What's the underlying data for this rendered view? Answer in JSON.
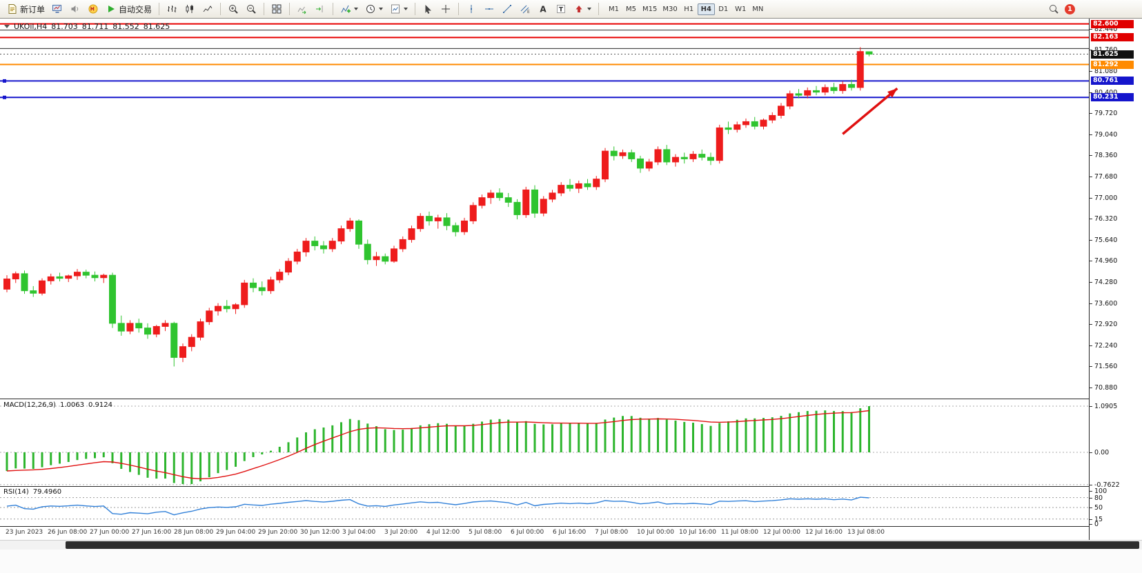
{
  "toolbar": {
    "labels": {
      "new_order": "新订单",
      "auto_trading": "自动交易"
    },
    "timeframes": [
      "M1",
      "M5",
      "M15",
      "M30",
      "H1",
      "H4",
      "D1",
      "W1",
      "MN"
    ],
    "active_timeframe": "H4",
    "notification_count": "1",
    "items": [
      {
        "type": "button",
        "name": "new-order-button",
        "icon": "doc",
        "label_key": "new_order"
      },
      {
        "type": "button",
        "name": "chart-window-button",
        "icon": "monitor"
      },
      {
        "type": "button",
        "name": "alerts-button",
        "icon": "speaker"
      },
      {
        "type": "button",
        "name": "community-button",
        "icon": "mq"
      },
      {
        "type": "button",
        "name": "auto-trading-button",
        "icon": "play",
        "label_key": "auto_trading"
      },
      {
        "type": "sep"
      },
      {
        "type": "button",
        "name": "bar-chart-mode-button",
        "icon": "bars"
      },
      {
        "type": "button",
        "name": "candlestick-mode-button",
        "icon": "candles"
      },
      {
        "type": "button",
        "name": "line-chart-mode-button",
        "icon": "linechart"
      },
      {
        "type": "sep"
      },
      {
        "type": "button",
        "name": "zoom-in-button",
        "icon": "zoomin"
      },
      {
        "type": "button",
        "name": "zoom-out-button",
        "icon": "zoomout"
      },
      {
        "type": "sep"
      },
      {
        "type": "button",
        "name": "tile-windows-button",
        "icon": "grid"
      },
      {
        "type": "sep"
      },
      {
        "type": "button",
        "name": "auto-scroll-button",
        "icon": "autoscroll"
      },
      {
        "type": "button",
        "name": "chart-shift-button",
        "icon": "shift"
      },
      {
        "type": "sep"
      },
      {
        "type": "button",
        "name": "indicators-button",
        "icon": "indicator",
        "caret": true
      },
      {
        "type": "button",
        "name": "periods-button",
        "icon": "clock",
        "caret": true
      },
      {
        "type": "button",
        "name": "templates-button",
        "icon": "template",
        "caret": true
      },
      {
        "type": "sep"
      },
      {
        "type": "button",
        "name": "cursor-button",
        "icon": "cursor"
      },
      {
        "type": "button",
        "name": "crosshair-button",
        "icon": "crosshair"
      },
      {
        "type": "sep"
      },
      {
        "type": "button",
        "name": "vertical-line-button",
        "icon": "vline"
      },
      {
        "type": "button",
        "name": "horizontal-line-button",
        "icon": "hline"
      },
      {
        "type": "button",
        "name": "trendline-button",
        "icon": "trend"
      },
      {
        "type": "button",
        "name": "equidistant-channel-button",
        "icon": "channel"
      },
      {
        "type": "button",
        "name": "text-label-button",
        "icon": "letterA"
      },
      {
        "type": "button",
        "name": "shapes-button",
        "icon": "letterT"
      },
      {
        "type": "button",
        "name": "arrows-button",
        "icon": "shapes",
        "caret": true
      },
      {
        "type": "sep"
      },
      {
        "type": "tf"
      }
    ]
  },
  "chart": {
    "symbol_tf": "UKOil,H4",
    "open": "81.703",
    "high": "81.711",
    "low": "81.552",
    "close": "81.625"
  },
  "macd": {
    "name": "MACD(12,26,9)",
    "main_value": "1.0063",
    "signal_value": "0.9124",
    "axis": [
      "1.0905",
      "0.00",
      "-0.7622"
    ]
  },
  "rsi": {
    "name": "RSI(14)",
    "value": "79.4960",
    "axis_labels": [
      "100",
      "80",
      "50",
      "15",
      "0"
    ],
    "levels": [
      80,
      50,
      15
    ]
  },
  "price_axis": {
    "ticks": [
      "82.440",
      "81.760",
      "81.080",
      "80.400",
      "79.720",
      "79.040",
      "78.360",
      "77.680",
      "77.000",
      "76.320",
      "75.640",
      "74.960",
      "74.280",
      "73.600",
      "72.920",
      "72.240",
      "71.560",
      "70.880"
    ],
    "boxes": [
      {
        "value": "82.600",
        "color": "#e00000"
      },
      {
        "value": "82.163",
        "color": "#e00000"
      },
      {
        "value": "81.625",
        "color": "#111111"
      },
      {
        "value": "81.292",
        "color": "#ff8a00"
      },
      {
        "value": "80.761",
        "color": "#1515cc"
      },
      {
        "value": "80.231",
        "color": "#1515cc"
      }
    ]
  },
  "time_axis": {
    "labels": [
      "23 Jun 2023",
      "26 Jun 08:00",
      "27 Jun 00:00",
      "27 Jun 16:00",
      "28 Jun 08:00",
      "29 Jun 04:00",
      "29 Jun 20:00",
      "30 Jun 12:00",
      "3 Jul 04:00",
      "3 Jul 20:00",
      "4 Jul 12:00",
      "5 Jul 08:00",
      "6 Jul 00:00",
      "6 Jul 16:00",
      "7 Jul 08:00",
      "10 Jul 00:00",
      "10 Jul 16:00",
      "11 Jul 08:00",
      "12 Jul 00:00",
      "12 Jul 16:00",
      "13 Jul 08:00"
    ]
  },
  "chart_data": {
    "type": "candlestick",
    "title": "UKOil H4 with MACD(12,26,9) and RSI(14)",
    "price_range": [
      70.53,
      82.77
    ],
    "bull_color": "#ee1c1c",
    "bear_color": "#2fc42f",
    "current_price": 81.625,
    "candles": [
      [
        74.05,
        74.5,
        73.95,
        74.38
      ],
      [
        74.38,
        74.62,
        74.25,
        74.55
      ],
      [
        74.55,
        74.65,
        73.9,
        74.0
      ],
      [
        74.0,
        74.15,
        73.8,
        73.92
      ],
      [
        73.92,
        74.4,
        73.85,
        74.32
      ],
      [
        74.32,
        74.55,
        74.2,
        74.45
      ],
      [
        74.45,
        74.58,
        74.3,
        74.4
      ],
      [
        74.4,
        74.52,
        74.28,
        74.48
      ],
      [
        74.48,
        74.7,
        74.35,
        74.6
      ],
      [
        74.6,
        74.68,
        74.4,
        74.5
      ],
      [
        74.5,
        74.62,
        74.3,
        74.42
      ],
      [
        74.42,
        74.55,
        74.25,
        74.5
      ],
      [
        74.5,
        74.58,
        72.8,
        72.95
      ],
      [
        72.95,
        73.2,
        72.55,
        72.7
      ],
      [
        72.7,
        73.05,
        72.6,
        72.95
      ],
      [
        72.95,
        73.1,
        72.65,
        72.8
      ],
      [
        72.8,
        72.95,
        72.45,
        72.6
      ],
      [
        72.6,
        72.9,
        72.5,
        72.85
      ],
      [
        72.85,
        73.05,
        72.7,
        72.95
      ],
      [
        72.95,
        73.0,
        71.56,
        71.85
      ],
      [
        71.85,
        72.3,
        71.7,
        72.2
      ],
      [
        72.2,
        72.6,
        72.05,
        72.5
      ],
      [
        72.5,
        73.1,
        72.4,
        73.0
      ],
      [
        73.0,
        73.45,
        72.9,
        73.35
      ],
      [
        73.35,
        73.6,
        73.2,
        73.5
      ],
      [
        73.5,
        73.7,
        73.3,
        73.42
      ],
      [
        73.42,
        73.6,
        73.25,
        73.55
      ],
      [
        73.55,
        74.35,
        73.45,
        74.25
      ],
      [
        74.25,
        74.4,
        73.95,
        74.1
      ],
      [
        74.1,
        74.3,
        73.85,
        74.0
      ],
      [
        74.0,
        74.45,
        73.9,
        74.35
      ],
      [
        74.35,
        74.7,
        74.25,
        74.6
      ],
      [
        74.6,
        75.05,
        74.5,
        74.95
      ],
      [
        74.95,
        75.35,
        74.85,
        75.25
      ],
      [
        75.25,
        75.7,
        75.1,
        75.6
      ],
      [
        75.6,
        75.75,
        75.3,
        75.45
      ],
      [
        75.45,
        75.6,
        75.2,
        75.35
      ],
      [
        75.35,
        75.7,
        75.25,
        75.6
      ],
      [
        75.6,
        76.1,
        75.5,
        76.0
      ],
      [
        76.0,
        76.35,
        75.9,
        76.25
      ],
      [
        76.25,
        76.3,
        75.35,
        75.5
      ],
      [
        75.5,
        75.65,
        74.85,
        75.0
      ],
      [
        75.0,
        75.25,
        74.8,
        75.1
      ],
      [
        75.1,
        75.2,
        74.85,
        74.95
      ],
      [
        74.95,
        75.45,
        74.9,
        75.35
      ],
      [
        75.35,
        75.75,
        75.25,
        75.65
      ],
      [
        75.65,
        76.1,
        75.55,
        76.0
      ],
      [
        76.0,
        76.5,
        75.9,
        76.4
      ],
      [
        76.4,
        76.55,
        76.1,
        76.25
      ],
      [
        76.25,
        76.45,
        76.0,
        76.35
      ],
      [
        76.35,
        76.5,
        75.95,
        76.1
      ],
      [
        76.1,
        76.2,
        75.75,
        75.9
      ],
      [
        75.9,
        76.35,
        75.8,
        76.25
      ],
      [
        76.25,
        76.85,
        76.15,
        76.75
      ],
      [
        76.75,
        77.1,
        76.65,
        77.0
      ],
      [
        77.0,
        77.25,
        76.8,
        77.15
      ],
      [
        77.15,
        77.3,
        76.9,
        77.0
      ],
      [
        77.0,
        77.15,
        76.7,
        76.85
      ],
      [
        76.85,
        76.95,
        76.3,
        76.45
      ],
      [
        76.45,
        77.35,
        76.35,
        77.25
      ],
      [
        77.25,
        77.4,
        76.35,
        76.5
      ],
      [
        76.5,
        77.05,
        76.4,
        76.95
      ],
      [
        76.95,
        77.25,
        76.85,
        77.15
      ],
      [
        77.15,
        77.5,
        77.05,
        77.4
      ],
      [
        77.4,
        77.6,
        77.2,
        77.3
      ],
      [
        77.3,
        77.55,
        77.15,
        77.45
      ],
      [
        77.45,
        77.6,
        77.25,
        77.35
      ],
      [
        77.35,
        77.7,
        77.25,
        77.6
      ],
      [
        77.6,
        78.6,
        77.5,
        78.5
      ],
      [
        78.5,
        78.65,
        78.2,
        78.35
      ],
      [
        78.35,
        78.55,
        78.25,
        78.45
      ],
      [
        78.45,
        78.55,
        78.15,
        78.25
      ],
      [
        78.25,
        78.35,
        77.8,
        77.95
      ],
      [
        77.95,
        78.25,
        77.85,
        78.15
      ],
      [
        78.15,
        78.65,
        78.05,
        78.55
      ],
      [
        78.55,
        78.7,
        78.05,
        78.15
      ],
      [
        78.15,
        78.4,
        78.0,
        78.3
      ],
      [
        78.3,
        78.45,
        78.1,
        78.25
      ],
      [
        78.25,
        78.5,
        78.15,
        78.4
      ],
      [
        78.4,
        78.55,
        78.2,
        78.3
      ],
      [
        78.3,
        78.45,
        78.05,
        78.2
      ],
      [
        78.2,
        79.35,
        78.1,
        79.25
      ],
      [
        79.25,
        79.45,
        79.05,
        79.2
      ],
      [
        79.2,
        79.45,
        79.1,
        79.35
      ],
      [
        79.35,
        79.55,
        79.25,
        79.45
      ],
      [
        79.45,
        79.6,
        79.2,
        79.3
      ],
      [
        79.3,
        79.55,
        79.2,
        79.5
      ],
      [
        79.5,
        79.75,
        79.4,
        79.65
      ],
      [
        79.65,
        80.05,
        79.55,
        79.95
      ],
      [
        79.95,
        80.45,
        79.85,
        80.35
      ],
      [
        80.35,
        80.5,
        80.2,
        80.3
      ],
      [
        80.3,
        80.55,
        80.2,
        80.45
      ],
      [
        80.45,
        80.6,
        80.3,
        80.4
      ],
      [
        80.4,
        80.65,
        80.3,
        80.55
      ],
      [
        80.55,
        80.7,
        80.35,
        80.45
      ],
      [
        80.45,
        80.75,
        80.35,
        80.65
      ],
      [
        80.65,
        80.8,
        80.45,
        80.55
      ],
      [
        80.55,
        81.85,
        80.45,
        81.71
      ],
      [
        81.703,
        81.711,
        81.552,
        81.625
      ]
    ],
    "hlines": [
      {
        "price": 82.6,
        "color": "#e80000",
        "width": 2,
        "handle": false
      },
      {
        "price": 82.4,
        "color": "#2a2a2a",
        "width": 1,
        "handle": false
      },
      {
        "price": 82.163,
        "color": "#e80000",
        "width": 2,
        "handle": false
      },
      {
        "price": 81.805,
        "color": "#2a2a2a",
        "width": 1,
        "handle": false
      },
      {
        "price": 81.292,
        "color": "#ff8a00",
        "width": 2,
        "handle": false
      },
      {
        "price": 80.761,
        "color": "#1515cc",
        "width": 2,
        "handle": true
      },
      {
        "price": 80.231,
        "color": "#1515cc",
        "width": 2,
        "handle": true
      }
    ],
    "arrow": {
      "from_bar": 95,
      "from_price": 79.05,
      "to_bar": 101.2,
      "to_price": 80.52,
      "color": "#e01010"
    },
    "macd": {
      "fast": 12,
      "slow": 26,
      "signal": 9,
      "scale_max": 1.0905,
      "scale_min": -0.7622,
      "hist_color": "#2db52d",
      "signal_color": "#e01010"
    },
    "rsi": {
      "period": 14,
      "color": "#2f7fd8"
    }
  }
}
